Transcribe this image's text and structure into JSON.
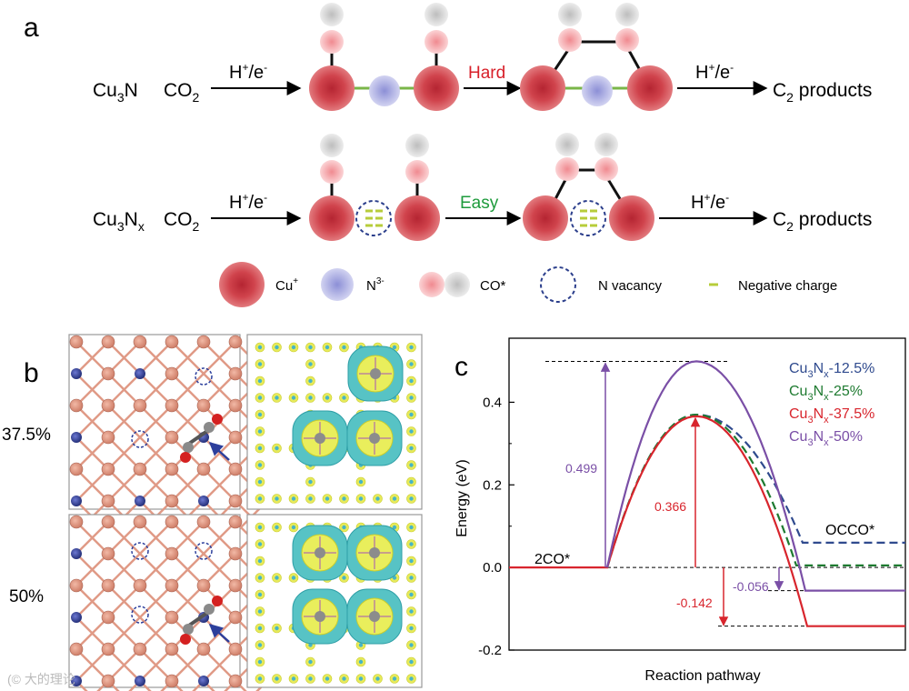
{
  "panel_labels": {
    "a": "a",
    "b": "b",
    "c": "c"
  },
  "panel_a": {
    "row1": {
      "material": "Cu3N",
      "reactant": "CO2",
      "step1": "H+/e-",
      "mid_label": "Hard",
      "step2": "H+/e-",
      "product": "C2 products"
    },
    "row2": {
      "material": "Cu3Nx",
      "reactant": "CO2",
      "step1": "H+/e-",
      "mid_label": "Easy",
      "step2": "H+/e-",
      "product": "C2 products"
    },
    "legend": [
      {
        "label": "Cu+"
      },
      {
        "label": "N3-"
      },
      {
        "label": "CO*"
      },
      {
        "label": "N vacancy"
      },
      {
        "label": "Negative charge"
      }
    ]
  },
  "panel_b": {
    "rows": [
      {
        "label": "37.5%"
      },
      {
        "label": "50%"
      }
    ]
  },
  "colors": {
    "cu": "#cf3a45",
    "n": "#a0a2dc",
    "co_o": "#f5a5a8",
    "co_c": "#c9c9c9",
    "hard": "#d8202a",
    "easy": "#1e9b3c",
    "vacancy": "#2c3f8c",
    "charge": "#b7cc3a",
    "s125": "#2f4a8e",
    "s25": "#1e7a30",
    "s375": "#d8252d",
    "s50": "#7a4fa6"
  },
  "chart_data": {
    "type": "line",
    "title": "",
    "xlabel": "Reaction pathway",
    "ylabel": "Energy (eV)",
    "ylim": [
      -0.2,
      0.55
    ],
    "yticks": [
      "-0.2",
      "0.0",
      "0.2",
      "0.4"
    ],
    "initial_state": "2CO*",
    "final_state": "OCCO*",
    "series": [
      {
        "name": "Cu3Nx-12.5%",
        "initial": 0.0,
        "barrier": 0.37,
        "final": 0.06
      },
      {
        "name": "Cu3Nx-25%",
        "initial": 0.0,
        "barrier": 0.37,
        "final": 0.005
      },
      {
        "name": "Cu3Nx-37.5%",
        "initial": 0.0,
        "barrier": 0.366,
        "final": -0.142
      },
      {
        "name": "Cu3Nx-50%",
        "initial": 0.0,
        "barrier": 0.499,
        "final": -0.056
      }
    ],
    "annotations": [
      "0.499",
      "0.366",
      "-0.056",
      "-0.142"
    ]
  }
}
